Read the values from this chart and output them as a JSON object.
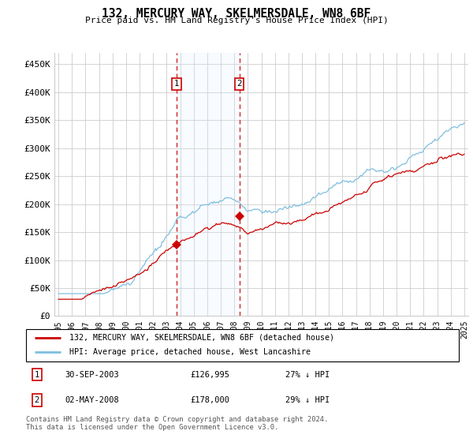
{
  "title": "132, MERCURY WAY, SKELMERSDALE, WN8 6BF",
  "subtitle": "Price paid vs. HM Land Registry's House Price Index (HPI)",
  "legend_line1": "132, MERCURY WAY, SKELMERSDALE, WN8 6BF (detached house)",
  "legend_line2": "HPI: Average price, detached house, West Lancashire",
  "footnote": "Contains HM Land Registry data © Crown copyright and database right 2024.\nThis data is licensed under the Open Government Licence v3.0.",
  "transaction1_date": "30-SEP-2003",
  "transaction1_price": "£126,995",
  "transaction1_hpi": "27% ↓ HPI",
  "transaction2_date": "02-MAY-2008",
  "transaction2_price": "£178,000",
  "transaction2_hpi": "29% ↓ HPI",
  "sale1_year": 2003.75,
  "sale1_price": 126995,
  "sale2_year": 2008.37,
  "sale2_price": 178000,
  "hpi_color": "#7fbfdf",
  "sale_color": "#cc0000",
  "vline_color": "#cc0000",
  "shade_color": "#ddeeff",
  "ylim": [
    0,
    470000
  ],
  "yticks": [
    0,
    50000,
    100000,
    150000,
    200000,
    250000,
    300000,
    350000,
    400000,
    450000
  ],
  "ytick_labels": [
    "£0",
    "£50K",
    "£100K",
    "£150K",
    "£200K",
    "£250K",
    "£300K",
    "£350K",
    "£400K",
    "£450K"
  ],
  "background_color": "#ffffff",
  "grid_color": "#cccccc"
}
